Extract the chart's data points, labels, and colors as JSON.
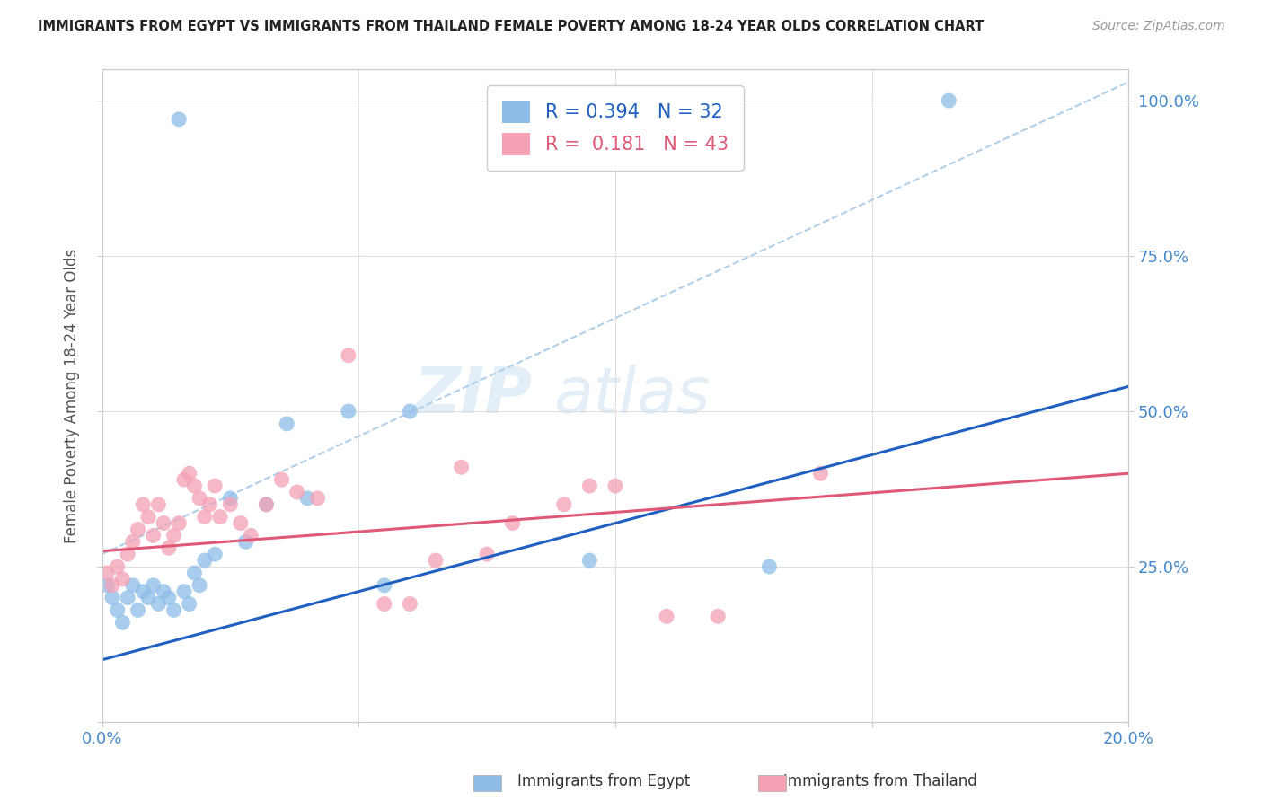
{
  "title": "IMMIGRANTS FROM EGYPT VS IMMIGRANTS FROM THAILAND FEMALE POVERTY AMONG 18-24 YEAR OLDS CORRELATION CHART",
  "source": "Source: ZipAtlas.com",
  "ylabel": "Female Poverty Among 18-24 Year Olds",
  "xlim": [
    0.0,
    0.2
  ],
  "ylim": [
    0.0,
    1.05
  ],
  "egypt_color": "#8dbde8",
  "thailand_color": "#f4a0b5",
  "egypt_line_color": "#2060c0",
  "thailand_line_color": "#e05878",
  "dashed_line_color": "#b0cfe8",
  "R_egypt": 0.394,
  "N_egypt": 32,
  "R_thailand": 0.181,
  "N_thailand": 43,
  "watermark_zip": "ZIP",
  "watermark_atlas": "atlas",
  "egypt_x": [
    0.001,
    0.002,
    0.003,
    0.004,
    0.005,
    0.006,
    0.007,
    0.008,
    0.009,
    0.01,
    0.011,
    0.012,
    0.013,
    0.014,
    0.015,
    0.016,
    0.017,
    0.018,
    0.019,
    0.02,
    0.022,
    0.025,
    0.028,
    0.032,
    0.036,
    0.04,
    0.048,
    0.055,
    0.06,
    0.095,
    0.13,
    0.165
  ],
  "egypt_y": [
    0.22,
    0.2,
    0.18,
    0.16,
    0.2,
    0.22,
    0.18,
    0.21,
    0.2,
    0.22,
    0.19,
    0.21,
    0.2,
    0.18,
    0.97,
    0.21,
    0.19,
    0.24,
    0.22,
    0.26,
    0.27,
    0.36,
    0.29,
    0.35,
    0.48,
    0.36,
    0.5,
    0.22,
    0.5,
    0.26,
    0.25,
    1.0
  ],
  "thailand_x": [
    0.001,
    0.002,
    0.003,
    0.004,
    0.005,
    0.006,
    0.007,
    0.008,
    0.009,
    0.01,
    0.011,
    0.012,
    0.013,
    0.014,
    0.015,
    0.016,
    0.017,
    0.018,
    0.019,
    0.02,
    0.021,
    0.022,
    0.023,
    0.025,
    0.027,
    0.029,
    0.032,
    0.035,
    0.038,
    0.042,
    0.048,
    0.055,
    0.06,
    0.065,
    0.07,
    0.075,
    0.08,
    0.09,
    0.095,
    0.1,
    0.11,
    0.12,
    0.14
  ],
  "thailand_y": [
    0.24,
    0.22,
    0.25,
    0.23,
    0.27,
    0.29,
    0.31,
    0.35,
    0.33,
    0.3,
    0.35,
    0.32,
    0.28,
    0.3,
    0.32,
    0.39,
    0.4,
    0.38,
    0.36,
    0.33,
    0.35,
    0.38,
    0.33,
    0.35,
    0.32,
    0.3,
    0.35,
    0.39,
    0.37,
    0.36,
    0.59,
    0.19,
    0.19,
    0.26,
    0.41,
    0.27,
    0.32,
    0.35,
    0.38,
    0.38,
    0.17,
    0.17,
    0.4
  ],
  "egypt_line_x0": 0.0,
  "egypt_line_y0": 0.1,
  "egypt_line_x1": 0.2,
  "egypt_line_y1": 0.54,
  "thailand_line_x0": 0.0,
  "thailand_line_y0": 0.275,
  "thailand_line_x1": 0.2,
  "thailand_line_y1": 0.4,
  "dash_line_x0": 0.0,
  "dash_line_y0": 0.27,
  "dash_line_x1": 0.2,
  "dash_line_y1": 1.03
}
